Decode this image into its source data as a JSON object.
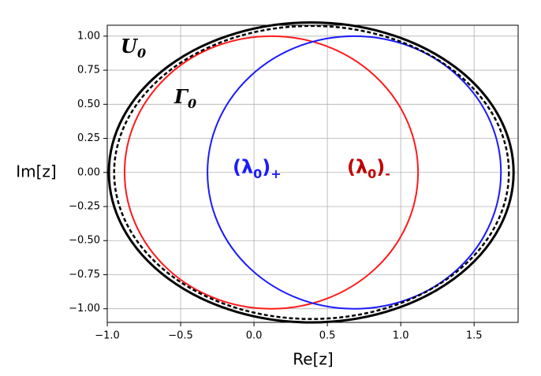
{
  "chart_data": {
    "type": "ellipses",
    "xlabel": "Re[z]",
    "ylabel": "Im[z]",
    "xlim": [
      -1.0,
      1.8
    ],
    "ylim": [
      -1.1,
      1.08
    ],
    "xticks": [
      {
        "value": -1.0,
        "label": "−1.0"
      },
      {
        "value": -0.5,
        "label": "−0.5"
      },
      {
        "value": 0,
        "label": "0.0"
      },
      0.5,
      {
        "value": 1.0,
        "label": "1.0"
      },
      1.5
    ],
    "yticks": [
      {
        "value": 1.0,
        "label": "1.00"
      },
      0.75,
      {
        "value": 0.5,
        "label": "0.50"
      },
      0.25,
      {
        "value": 0,
        "label": "0.00"
      },
      {
        "value": -0.25,
        "label": "−0.25"
      },
      {
        "value": -0.5,
        "label": "−0.50"
      },
      {
        "value": -0.75,
        "label": "−0.75"
      },
      {
        "value": -1.0,
        "label": "−1.00"
      }
    ],
    "grid": true,
    "ellipses": [
      {
        "cx": 0.118,
        "cy": 0,
        "rx": 1.0,
        "ry": 1.0,
        "color": "#ff1a1a",
        "dashed": false,
        "width": 2
      },
      {
        "cx": 0.683,
        "cy": 0,
        "rx": 1.0,
        "ry": 1.0,
        "color": "#1a1aff",
        "dashed": false,
        "width": 2
      },
      {
        "cx": 0.39,
        "cy": 0,
        "rx": 1.379,
        "ry": 1.1,
        "color": "#000000",
        "dashed": false,
        "width": 3
      },
      {
        "cx": 0.392,
        "cy": 0,
        "rx": 1.345,
        "ry": 1.075,
        "color": "#000000",
        "dashed": true,
        "width": 2.5
      }
    ],
    "annotations": [
      {
        "parts": [
          "U",
          "0"
        ],
        "color": "#000000"
      },
      {
        "parts": [
          "Γ",
          "0"
        ],
        "color": "#000000"
      },
      {
        "parts": [
          "(λ",
          "0",
          ")",
          "+"
        ],
        "color": "#1a1aff"
      },
      {
        "parts": [
          "(λ",
          "0",
          ")",
          "-"
        ],
        "color": "#c00000"
      }
    ]
  }
}
